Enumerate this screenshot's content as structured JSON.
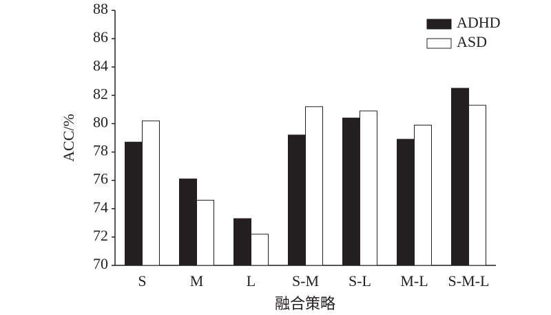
{
  "chart_data": {
    "type": "bar",
    "categories": [
      "S",
      "M",
      "L",
      "S-M",
      "S-L",
      "M-L",
      "S-M-L"
    ],
    "series": [
      {
        "name": "ADHD",
        "color": "#231f20",
        "values": [
          78.7,
          76.1,
          73.3,
          79.2,
          80.4,
          78.9,
          82.5
        ]
      },
      {
        "name": "ASD",
        "color": "#ffffff",
        "values": [
          80.2,
          74.6,
          72.2,
          81.2,
          80.9,
          79.9,
          81.3
        ]
      }
    ],
    "x_label": "融合策略",
    "y_label": "ACC/%",
    "ylim": [
      70,
      88
    ],
    "yticks": [
      70,
      72,
      74,
      76,
      78,
      80,
      82,
      84,
      86,
      88
    ],
    "legend": "upper right"
  }
}
